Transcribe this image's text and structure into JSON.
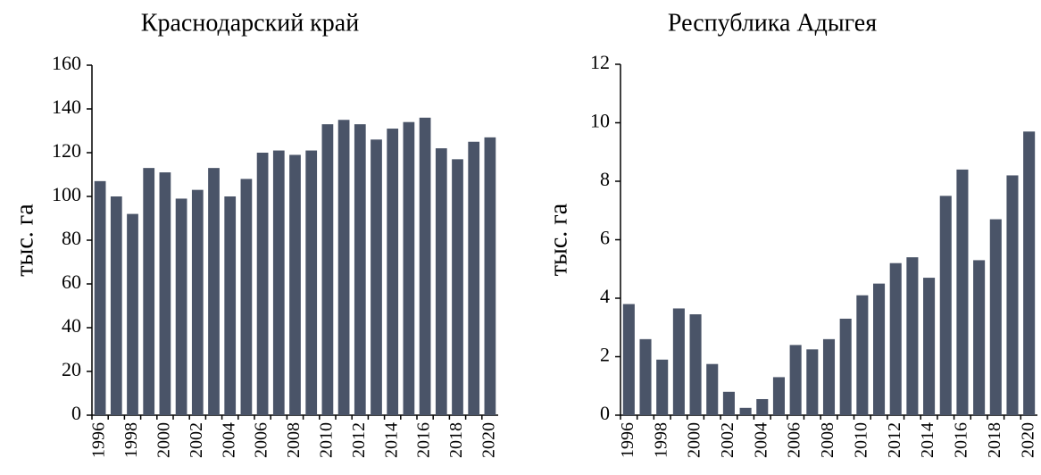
{
  "chart_data": [
    {
      "type": "bar",
      "title": "Краснодарский край",
      "ylabel": "тыс. га",
      "color": "#4a5468",
      "categories": [
        "1996",
        null,
        "1998",
        null,
        "2000",
        null,
        "2002",
        null,
        "2004",
        null,
        "2006",
        null,
        "2008",
        null,
        "2010",
        null,
        "2012",
        null,
        "2014",
        null,
        "2016",
        null,
        "2018",
        null,
        "2020"
      ],
      "values": [
        107,
        100,
        92,
        113,
        111,
        99,
        103,
        113,
        100,
        108,
        120,
        121,
        119,
        121,
        133,
        135,
        133,
        126,
        131,
        134,
        136,
        122,
        117,
        125,
        127
      ],
      "ylim": [
        0,
        160
      ],
      "yticks": [
        0,
        20,
        40,
        60,
        80,
        100,
        120,
        140,
        160
      ],
      "grid": false
    },
    {
      "type": "bar",
      "title": "Республика Адыгея",
      "ylabel": "тыс. га",
      "color": "#4a5468",
      "categories": [
        "1996",
        null,
        "1998",
        null,
        "2000",
        null,
        "2002",
        null,
        "2004",
        null,
        "2006",
        null,
        "2008",
        null,
        "2010",
        null,
        "2012",
        null,
        "2014",
        null,
        "2016",
        null,
        "2018",
        null,
        "2020"
      ],
      "values": [
        3.8,
        2.6,
        1.9,
        3.65,
        3.45,
        1.75,
        0.8,
        0.25,
        0.55,
        1.3,
        2.4,
        2.25,
        2.6,
        3.3,
        4.1,
        4.5,
        5.2,
        5.4,
        4.7,
        7.5,
        8.4,
        5.3,
        6.7,
        8.2,
        9.7
      ],
      "ylim": [
        0,
        12
      ],
      "yticks": [
        0,
        2,
        4,
        6,
        8,
        10,
        12
      ],
      "grid": false
    }
  ]
}
